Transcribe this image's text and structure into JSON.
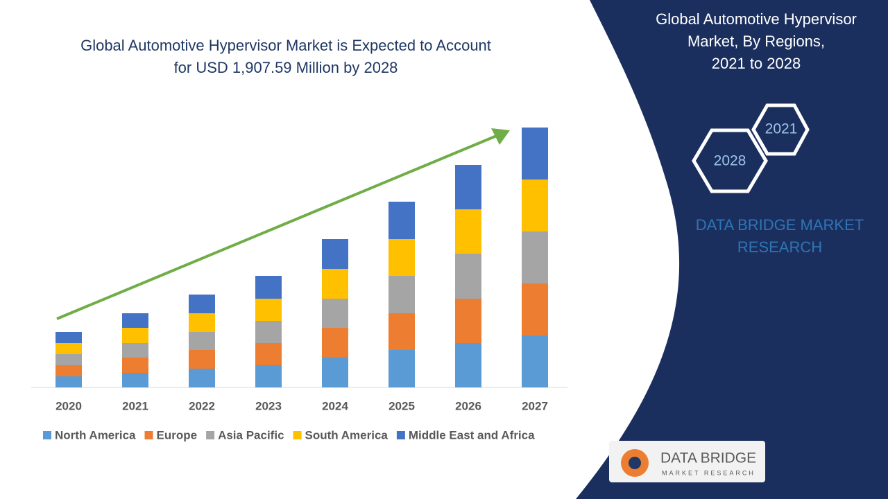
{
  "chart_data": {
    "type": "bar",
    "stacked": true,
    "title": [
      "Global Automotive Hypervisor Market is Expected to Account",
      "for USD 1,907.59 Million by 2028"
    ],
    "categories": [
      "2020",
      "2021",
      "2022",
      "2023",
      "2024",
      "2025",
      "2026",
      "2027"
    ],
    "series": [
      {
        "name": "North America",
        "color": "#5b9bd5",
        "values": [
          16,
          21,
          27,
          32,
          43,
          54,
          64,
          75
        ]
      },
      {
        "name": "Europe",
        "color": "#ed7d31",
        "values": [
          16,
          22,
          27,
          32,
          43,
          53,
          64,
          75
        ]
      },
      {
        "name": "Asia Pacific",
        "color": "#a5a5a5",
        "values": [
          16,
          21,
          26,
          32,
          42,
          54,
          65,
          75
        ]
      },
      {
        "name": "South America",
        "color": "#ffc000",
        "values": [
          16,
          22,
          27,
          32,
          43,
          53,
          64,
          75
        ]
      },
      {
        "name": "Middle East and Africa",
        "color": "#4472c4",
        "values": [
          16,
          21,
          27,
          33,
          43,
          54,
          64,
          75
        ]
      }
    ]
  },
  "panel": {
    "title": [
      "Global Automotive Hypervisor",
      "Market, By Regions,",
      "2021 to 2028"
    ],
    "hexagons": [
      "2021",
      "2028"
    ],
    "brand": [
      "DATA BRIDGE MARKET",
      "RESEARCH"
    ]
  },
  "logo": {
    "name": "DATA BRIDGE",
    "tagline": "MARKET RESEARCH"
  }
}
